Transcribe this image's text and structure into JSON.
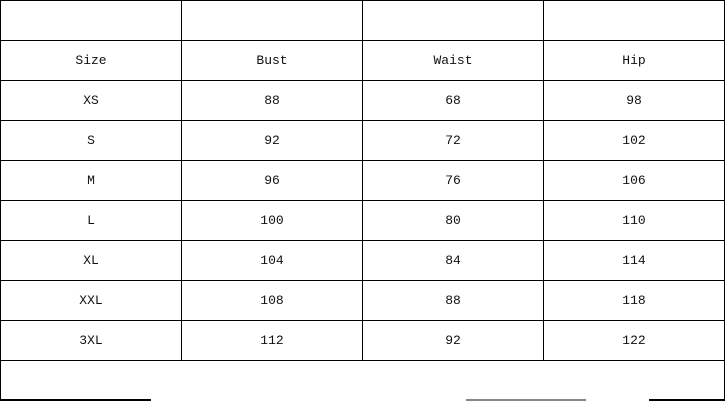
{
  "table": {
    "headers": [
      "Size",
      "Bust",
      "Waist",
      "Hip"
    ],
    "rows": [
      [
        "XS",
        "88",
        "68",
        "98"
      ],
      [
        "S",
        "92",
        "72",
        "102"
      ],
      [
        "M",
        "96",
        "76",
        "106"
      ],
      [
        "L",
        "100",
        "80",
        "110"
      ],
      [
        "XL",
        "104",
        "84",
        "114"
      ],
      [
        "XXL",
        "108",
        "88",
        "118"
      ],
      [
        "3XL",
        "112",
        "92",
        "122"
      ]
    ]
  }
}
